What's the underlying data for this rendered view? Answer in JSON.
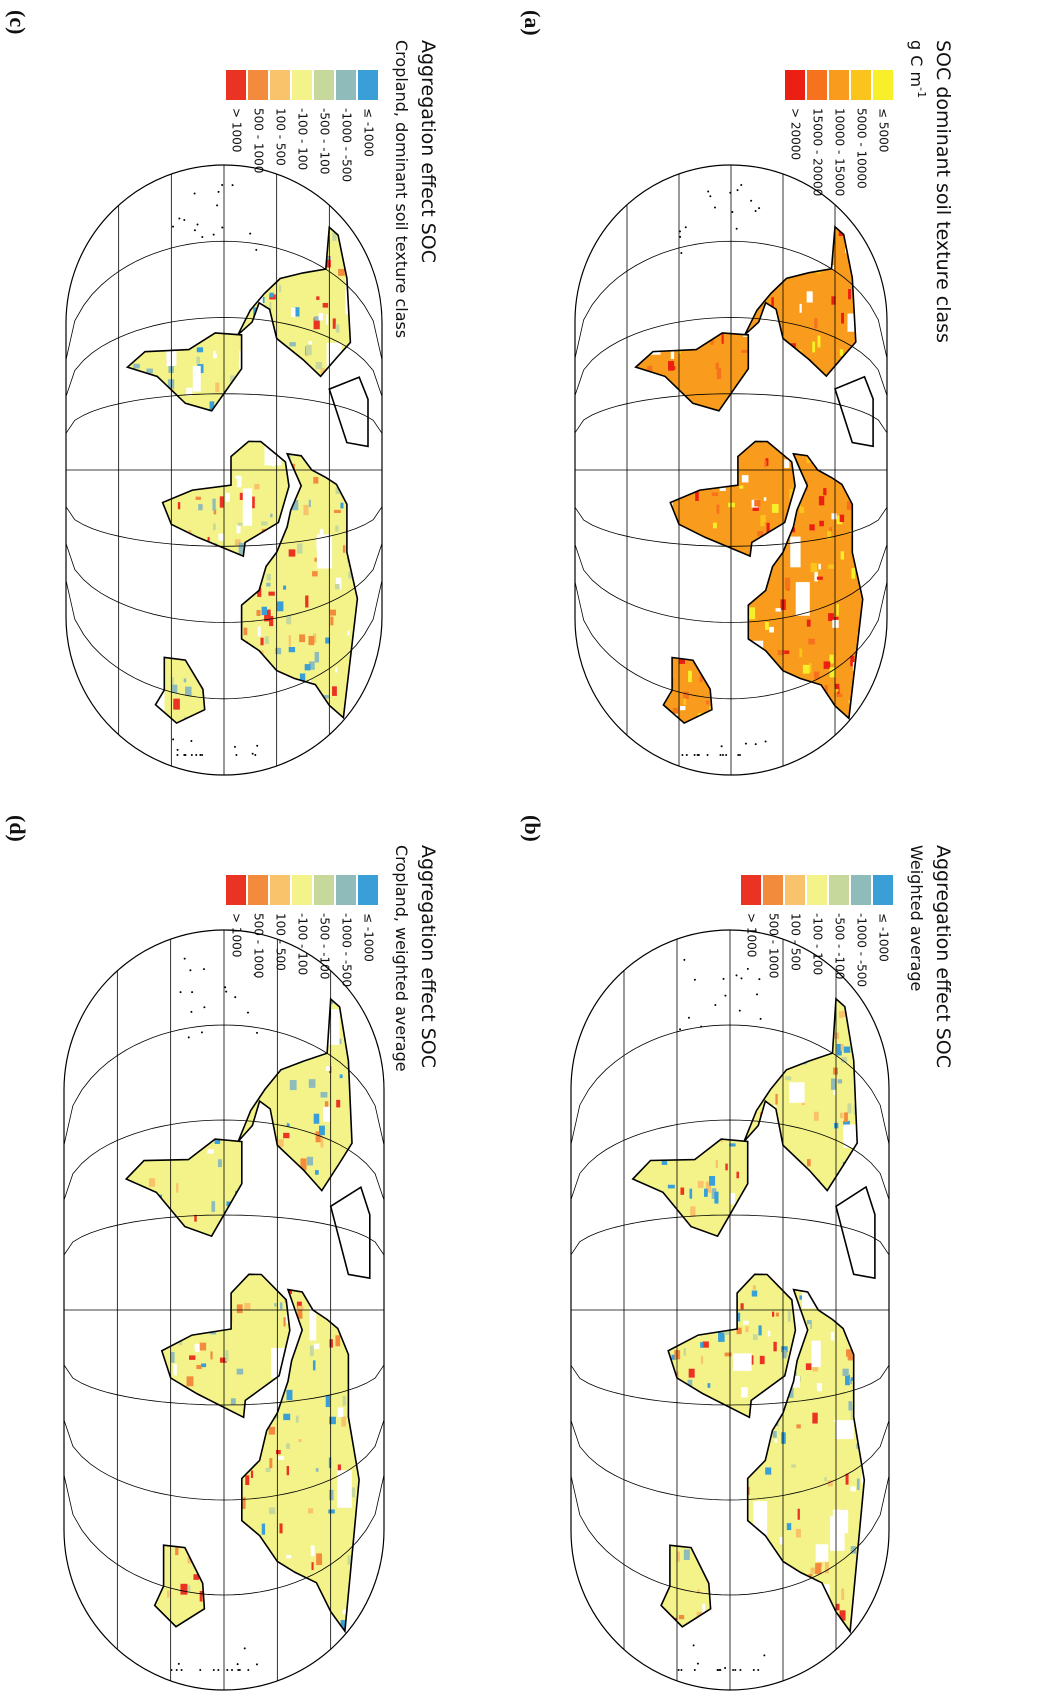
{
  "panels": [
    {
      "label": "(a)",
      "title": "SOC dominant soil texture class",
      "unit": {
        "base": "g C m",
        "sup": "-1"
      },
      "legend": [
        {
          "label": "≤ 5000",
          "color": "#f6ef2a"
        },
        {
          "label": "5000 - 10000",
          "color": "#fbc41d"
        },
        {
          "label": "10000 - 15000",
          "color": "#f99c1d"
        },
        {
          "label": "15000 - 20000",
          "color": "#f6721c"
        },
        {
          "label": "> 20000",
          "color": "#ec2012"
        }
      ]
    },
    {
      "label": "(b)",
      "title": "Aggregation effect SOC",
      "subtitle": "Weighted average",
      "legend": [
        {
          "label": "≤ -1000",
          "color": "#3a9fd6"
        },
        {
          "label": "-1000 - -500",
          "color": "#8fbcbb"
        },
        {
          "label": "-500 - -100",
          "color": "#c6d89b"
        },
        {
          "label": "-100 - 100",
          "color": "#f3f38a"
        },
        {
          "label": "100 - 500",
          "color": "#f8c36a"
        },
        {
          "label": "500 - 1000",
          "color": "#f28c3c"
        },
        {
          "label": "> 1000",
          "color": "#ea3323"
        }
      ]
    },
    {
      "label": "(c)",
      "title": "Aggregation effect SOC",
      "subtitle": "Cropland, dominant soil texture class",
      "legend": [
        {
          "label": "≤ -1000",
          "color": "#3a9fd6"
        },
        {
          "label": "-1000 - -500",
          "color": "#8fbcbb"
        },
        {
          "label": "-500 - -100",
          "color": "#c6d89b"
        },
        {
          "label": "-100 - 100",
          "color": "#f3f38a"
        },
        {
          "label": "100 - 500",
          "color": "#f8c36a"
        },
        {
          "label": "500 - 1000",
          "color": "#f28c3c"
        },
        {
          "label": "> 1000",
          "color": "#ea3323"
        }
      ]
    },
    {
      "label": "(d)",
      "title": "Aggregation effect SOC",
      "subtitle": "Cropland, weighted average",
      "legend": [
        {
          "label": "≤ -1000",
          "color": "#3a9fd6"
        },
        {
          "label": "-1000 - -500",
          "color": "#8fbcbb"
        },
        {
          "label": "-500 - -100",
          "color": "#c6d89b"
        },
        {
          "label": "-100 - 100",
          "color": "#f3f38a"
        },
        {
          "label": "100 - 500",
          "color": "#f8c36a"
        },
        {
          "label": "500 - 1000",
          "color": "#f28c3c"
        },
        {
          "label": "> 1000",
          "color": "#ea3323"
        }
      ]
    }
  ]
}
